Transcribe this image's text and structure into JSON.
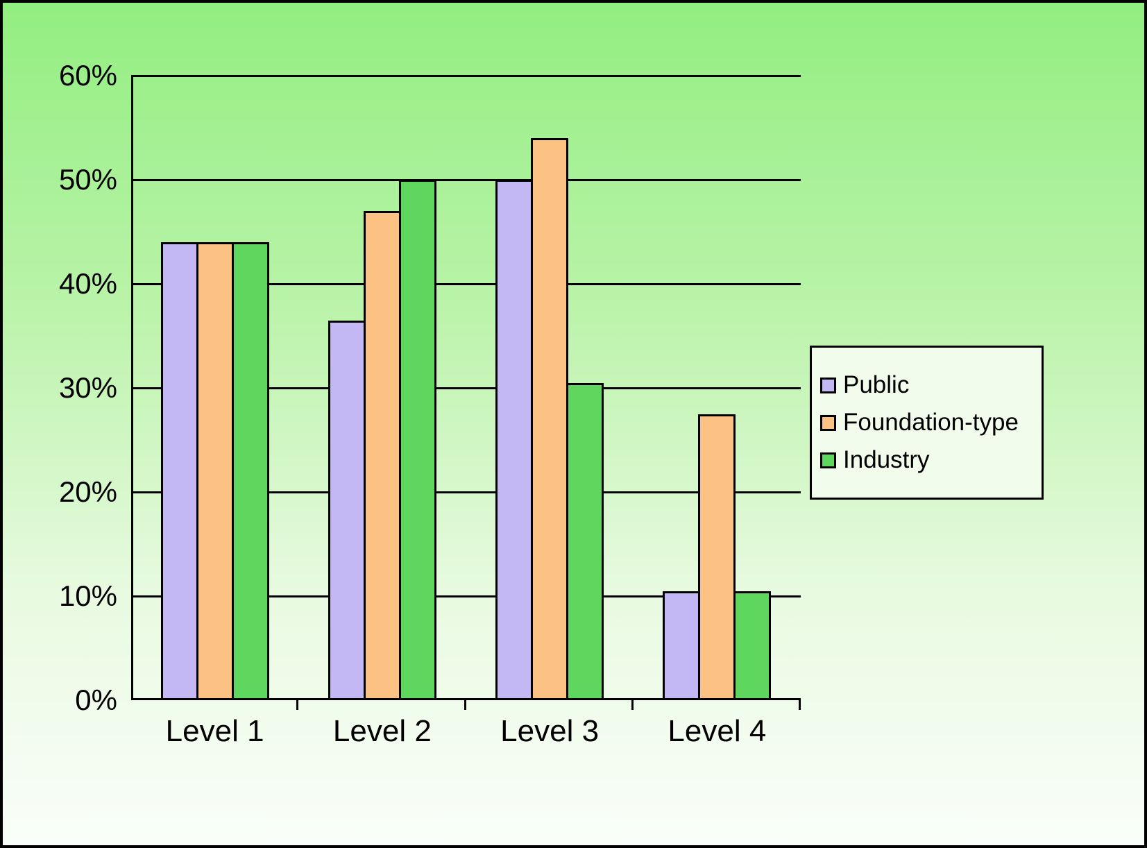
{
  "chart_data": {
    "type": "bar",
    "categories": [
      "Level 1",
      "Level 2",
      "Level 3",
      "Level 4"
    ],
    "series": [
      {
        "name": "Public",
        "color": "#c4b8f4",
        "values": [
          44,
          36.5,
          50,
          10.5
        ]
      },
      {
        "name": "Foundation-type",
        "color": "#fbc283",
        "values": [
          44,
          47,
          54,
          27.5
        ]
      },
      {
        "name": "Industry",
        "color": "#5fd75f",
        "values": [
          44,
          50,
          30.5,
          10.5
        ]
      }
    ],
    "title": "",
    "xlabel": "",
    "ylabel": "",
    "ylim": [
      0,
      60
    ],
    "ytick_interval": 10,
    "ytick_labels": [
      "0%",
      "10%",
      "20%",
      "30%",
      "40%",
      "50%",
      "60%"
    ],
    "grid": true,
    "legend_position": "right"
  },
  "colors": {
    "background_top": "#92ee80",
    "background_bottom": "#fafefa",
    "axis": "#000000",
    "gridline": "#000000",
    "legend_background": "#f1fcec",
    "bar_border": "#000000"
  }
}
